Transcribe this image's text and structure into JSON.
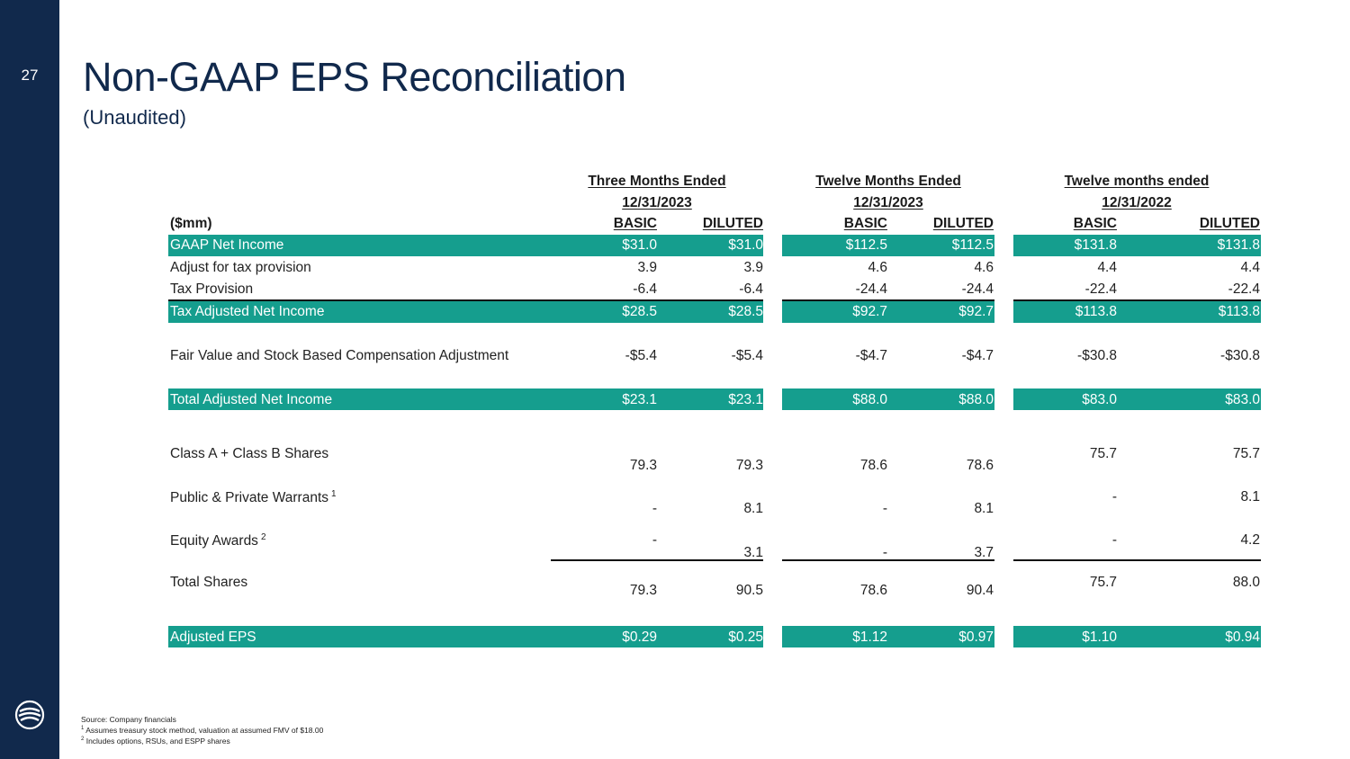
{
  "slide": {
    "page_number": "27",
    "title": "Non-GAAP EPS Reconciliation",
    "subtitle": "(Unaudited)"
  },
  "colors": {
    "sidebar": "#11294c",
    "highlight": "#159e8e",
    "title": "#11294c"
  },
  "table": {
    "unit_label": "($mm)",
    "periods": [
      {
        "line1": "Three Months Ended",
        "line2": "12/31/2023",
        "basic": "BASIC",
        "diluted": "DILUTED"
      },
      {
        "line1": "Twelve  Months Ended",
        "line2": "12/31/2023",
        "basic": "BASIC",
        "diluted": "DILUTED"
      },
      {
        "line1": "Twelve  months ended",
        "line2": "12/31/2022",
        "basic": "BASIC",
        "diluted": "DILUTED"
      }
    ],
    "rows": [
      {
        "label": "GAAP Net Income",
        "values": [
          "$31.0",
          "$31.0",
          "$112.5",
          "$112.5",
          "$131.8",
          "$131.8"
        ]
      },
      {
        "label": "Adjust for tax provision",
        "values": [
          "3.9",
          "3.9",
          "4.6",
          "4.6",
          "4.4",
          "4.4"
        ]
      },
      {
        "label": "Tax Provision",
        "values": [
          "-6.4",
          "-6.4",
          "-24.4",
          "-24.4",
          "-22.4",
          "-22.4"
        ]
      },
      {
        "label": "Tax Adjusted Net Income",
        "values": [
          "$28.5",
          "$28.5",
          "$92.7",
          "$92.7",
          "$113.8",
          "$113.8"
        ]
      },
      {
        "label": "Fair Value and Stock Based Compensation Adjustment",
        "values": [
          "-$5.4",
          "-$5.4",
          "-$4.7",
          "-$4.7",
          "-$30.8",
          "-$30.8"
        ]
      },
      {
        "label": "Total Adjusted Net Income",
        "values": [
          "$23.1",
          "$23.1",
          "$88.0",
          "$88.0",
          "$83.0",
          "$83.0"
        ]
      },
      {
        "label": "Class A + Class B Shares",
        "values": [
          "79.3",
          "79.3",
          "78.6",
          "78.6",
          "75.7",
          "75.7"
        ]
      },
      {
        "label": "Public & Private Warrants",
        "sup": "1",
        "values": [
          "-",
          "8.1",
          "-",
          "8.1",
          "-",
          "8.1"
        ]
      },
      {
        "label": "Equity Awards",
        "sup": "2",
        "values": [
          "-",
          "3.1",
          "-",
          "3.7",
          "-",
          "4.2"
        ]
      },
      {
        "label": "Total Shares",
        "values": [
          "79.3",
          "90.5",
          "78.6",
          "90.4",
          "75.7",
          "88.0"
        ]
      },
      {
        "label": "Adjusted EPS",
        "values": [
          "$0.29",
          "$0.25",
          "$1.12",
          "$0.97",
          "$1.10",
          "$0.94"
        ]
      }
    ]
  },
  "footnotes": {
    "source": "Source: Company financials",
    "note1_marker": "1",
    "note1": " Assumes treasury stock method, valuation at assumed FMV of $18.00",
    "note2_marker": "2",
    "note2": " Includes options, RSUs, and ESPP shares"
  }
}
